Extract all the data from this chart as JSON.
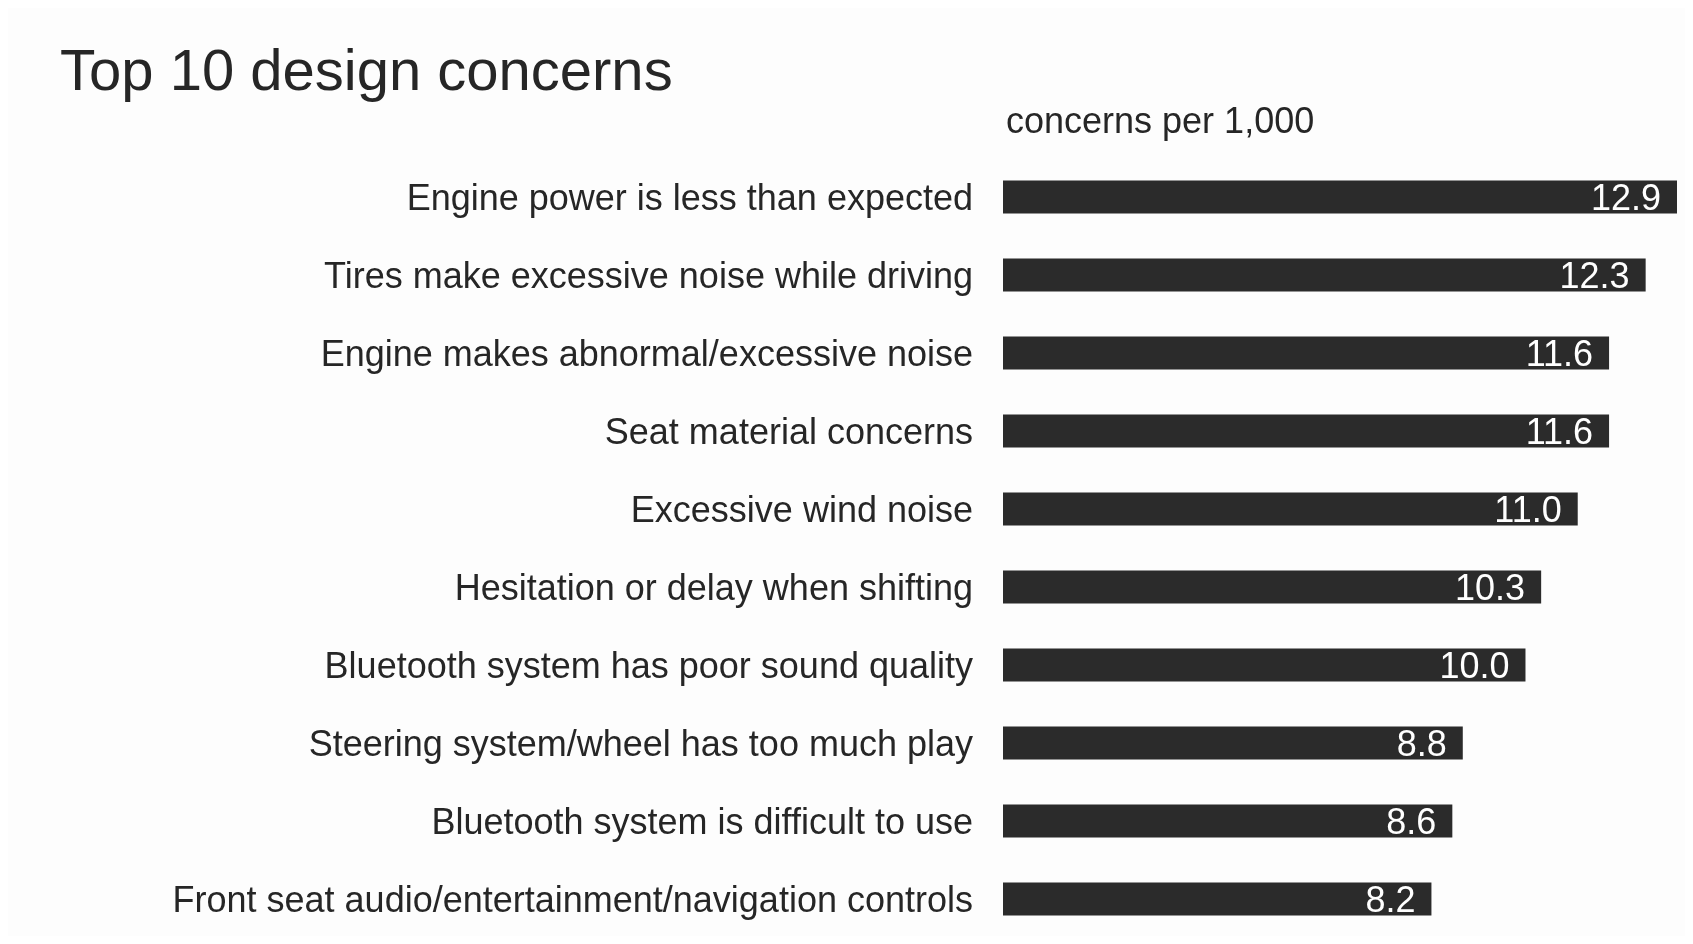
{
  "chart_data": {
    "type": "bar",
    "orientation": "horizontal",
    "title": "Top 10 design concerns",
    "xlabel": "concerns per 1,000",
    "categories": [
      "Engine power is less than expected",
      "Tires make excessive noise while driving",
      "Engine makes abnormal/excessive noise",
      "Seat material concerns",
      "Excessive wind noise",
      "Hesitation or delay when shifting",
      "Bluetooth system has poor sound quality",
      "Steering system/wheel has too much play",
      "Bluetooth system is difficult to use",
      "Front seat audio/entertainment/navigation controls"
    ],
    "values": [
      12.9,
      12.3,
      11.6,
      11.6,
      11.0,
      10.3,
      10.0,
      8.8,
      8.6,
      8.2
    ],
    "value_labels": [
      "12.9",
      "12.3",
      "11.6",
      "11.6",
      "11.0",
      "10.3",
      "10.0",
      "8.8",
      "8.6",
      "8.2"
    ],
    "color": "#2b2b2b",
    "grid": false,
    "legend": false
  }
}
